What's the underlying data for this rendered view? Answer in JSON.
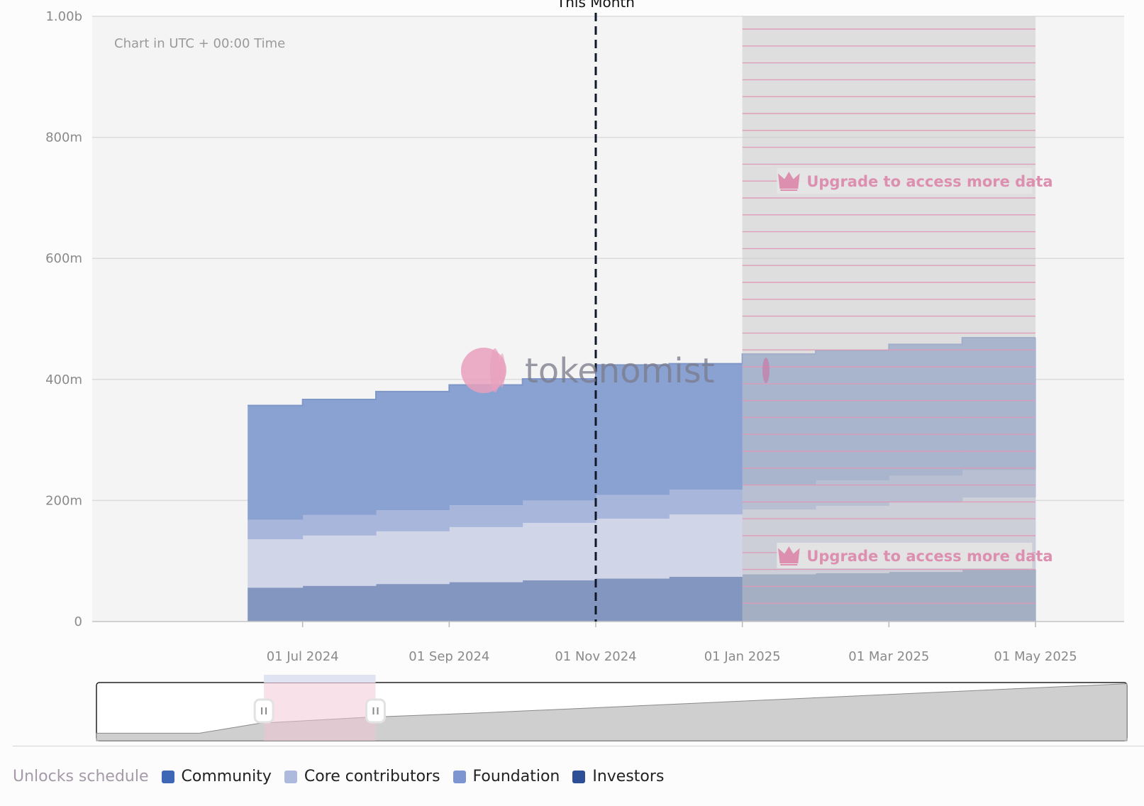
{
  "chart_data": {
    "type": "area",
    "note": "Chart in UTC + 00:00 Time",
    "y_ticks": [
      "0",
      "200m",
      "400m",
      "600m",
      "800m",
      "1.00b"
    ],
    "y_values": [
      0,
      200,
      400,
      600,
      800,
      1000
    ],
    "ylim": [
      0,
      1000
    ],
    "x_ticks": [
      "01 Jul 2024",
      "01 Sep 2024",
      "01 Nov 2024",
      "01 Jan 2025",
      "01 Mar 2025",
      "01 May 2025"
    ],
    "x_tick_months": [
      2,
      4,
      6,
      8,
      10,
      12
    ],
    "xlim_months": [
      0,
      12
    ],
    "step_starts_months": [
      1.25,
      2.0,
      3.0,
      4.0,
      5.0,
      6.0,
      7.0,
      8.0,
      9.0,
      10.0,
      11.0
    ],
    "step_end_month": 12,
    "series": [
      {
        "name": "Investors",
        "color": "#8296c0",
        "values": [
          56,
          59,
          62,
          65,
          68,
          71,
          74,
          78,
          80,
          82,
          86
        ]
      },
      {
        "name": "Community",
        "color": "#d0d5e8",
        "values": [
          80,
          83,
          87,
          91,
          95,
          99,
          103,
          107,
          111,
          115,
          119
        ]
      },
      {
        "name": "Core contributors",
        "color": "#a8b6dc",
        "values": [
          32,
          34,
          35,
          36,
          37,
          39,
          41,
          41,
          42,
          44,
          45
        ]
      },
      {
        "name": "Foundation",
        "color": "#8aa2d2",
        "values": [
          189,
          191,
          196,
          199,
          201,
          215,
          208,
          216,
          215,
          217,
          219
        ]
      }
    ],
    "this_month": {
      "label": "This Month",
      "month": 6.0
    },
    "locked_from_month": 8.0,
    "upgrade_text": "Upgrade to access more data",
    "watermark": "tokenomist",
    "navigator": {
      "x": [
        0,
        1.2,
        1.9,
        3.1,
        4.5,
        12
      ],
      "y": [
        130,
        130,
        300,
        400,
        480,
        980
      ],
      "window_months": [
        1.95,
        3.25
      ]
    },
    "legend": {
      "title": "Unlocks schedule",
      "items": [
        {
          "label": "Community",
          "color": "#3e68b5"
        },
        {
          "label": "Core contributors",
          "color": "#aebadd"
        },
        {
          "label": "Foundation",
          "color": "#7d96d2"
        },
        {
          "label": "Investors",
          "color": "#2e4f95"
        }
      ]
    }
  }
}
